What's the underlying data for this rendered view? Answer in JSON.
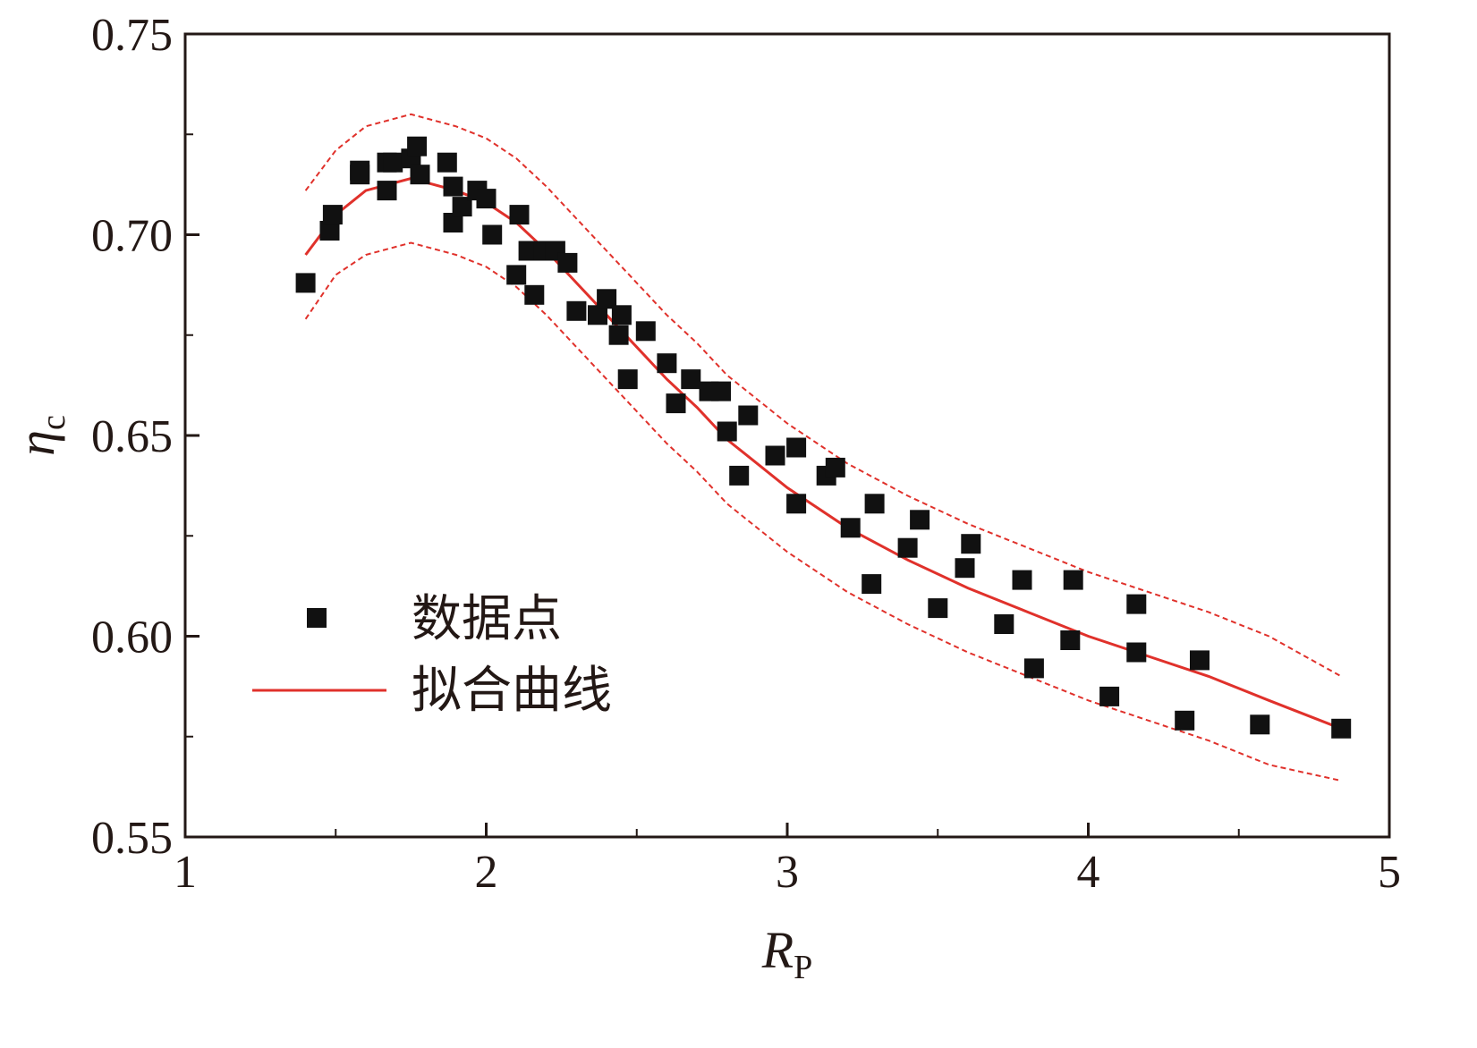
{
  "chart_data": {
    "type": "scatter",
    "xlabel": "R",
    "xlabel_sub": "P",
    "ylabel": "η",
    "ylabel_sub": "c",
    "xlim": [
      1,
      5
    ],
    "ylim": [
      0.55,
      0.75
    ],
    "x_ticks": [
      "1",
      "2",
      "3",
      "4",
      "5"
    ],
    "y_ticks": [
      "0.55",
      "0.60",
      "0.65",
      "0.70",
      "0.75"
    ],
    "grid": false,
    "legend_position": "center-left",
    "legend": {
      "points_label": "数据点",
      "fit_label": "拟合曲线"
    },
    "colors": {
      "points": "#111111",
      "fit": "#e0312b",
      "bounds": "#e0312b",
      "axis": "#231815"
    },
    "series": [
      {
        "name": "数据点",
        "kind": "points",
        "points": [
          [
            1.4,
            0.688
          ],
          [
            1.48,
            0.701
          ],
          [
            1.49,
            0.705
          ],
          [
            1.58,
            0.715
          ],
          [
            1.58,
            0.716
          ],
          [
            1.67,
            0.718
          ],
          [
            1.67,
            0.711
          ],
          [
            1.69,
            0.718
          ],
          [
            1.75,
            0.719
          ],
          [
            1.77,
            0.722
          ],
          [
            1.78,
            0.715
          ],
          [
            1.87,
            0.718
          ],
          [
            1.89,
            0.712
          ],
          [
            1.89,
            0.703
          ],
          [
            1.92,
            0.707
          ],
          [
            1.97,
            0.711
          ],
          [
            2.0,
            0.709
          ],
          [
            2.02,
            0.7
          ],
          [
            2.1,
            0.69
          ],
          [
            2.11,
            0.705
          ],
          [
            2.14,
            0.696
          ],
          [
            2.16,
            0.685
          ],
          [
            2.19,
            0.696
          ],
          [
            2.23,
            0.696
          ],
          [
            2.27,
            0.693
          ],
          [
            2.3,
            0.681
          ],
          [
            2.37,
            0.68
          ],
          [
            2.4,
            0.684
          ],
          [
            2.44,
            0.675
          ],
          [
            2.45,
            0.68
          ],
          [
            2.47,
            0.664
          ],
          [
            2.53,
            0.676
          ],
          [
            2.6,
            0.668
          ],
          [
            2.63,
            0.658
          ],
          [
            2.68,
            0.664
          ],
          [
            2.74,
            0.661
          ],
          [
            2.78,
            0.661
          ],
          [
            2.8,
            0.651
          ],
          [
            2.84,
            0.64
          ],
          [
            2.87,
            0.655
          ],
          [
            2.96,
            0.645
          ],
          [
            3.03,
            0.647
          ],
          [
            3.03,
            0.633
          ],
          [
            3.13,
            0.64
          ],
          [
            3.16,
            0.642
          ],
          [
            3.21,
            0.627
          ],
          [
            3.28,
            0.613
          ],
          [
            3.29,
            0.633
          ],
          [
            3.4,
            0.622
          ],
          [
            3.44,
            0.629
          ],
          [
            3.5,
            0.607
          ],
          [
            3.59,
            0.617
          ],
          [
            3.61,
            0.623
          ],
          [
            3.72,
            0.603
          ],
          [
            3.78,
            0.614
          ],
          [
            3.82,
            0.592
          ],
          [
            3.94,
            0.599
          ],
          [
            3.95,
            0.614
          ],
          [
            4.07,
            0.585
          ],
          [
            4.16,
            0.608
          ],
          [
            4.16,
            0.596
          ],
          [
            4.32,
            0.579
          ],
          [
            4.37,
            0.594
          ],
          [
            4.57,
            0.578
          ],
          [
            4.84,
            0.577
          ]
        ]
      },
      {
        "name": "拟合曲线",
        "kind": "line",
        "x": [
          1.4,
          1.5,
          1.6,
          1.7,
          1.75,
          1.8,
          1.9,
          2.0,
          2.1,
          2.2,
          2.3,
          2.4,
          2.5,
          2.6,
          2.7,
          2.8,
          2.9,
          3.0,
          3.2,
          3.4,
          3.6,
          3.8,
          4.0,
          4.2,
          4.4,
          4.6,
          4.84
        ],
        "y": [
          0.695,
          0.705,
          0.711,
          0.713,
          0.714,
          0.713,
          0.711,
          0.708,
          0.703,
          0.696,
          0.688,
          0.68,
          0.672,
          0.664,
          0.657,
          0.649,
          0.643,
          0.637,
          0.627,
          0.619,
          0.612,
          0.606,
          0.6,
          0.595,
          0.59,
          0.584,
          0.577
        ]
      },
      {
        "kind": "upper-bound",
        "x": [
          1.4,
          1.5,
          1.6,
          1.7,
          1.75,
          1.8,
          1.9,
          2.0,
          2.1,
          2.2,
          2.3,
          2.4,
          2.5,
          2.6,
          2.7,
          2.8,
          2.9,
          3.0,
          3.2,
          3.4,
          3.6,
          3.8,
          4.0,
          4.2,
          4.4,
          4.6,
          4.84
        ],
        "y": [
          0.711,
          0.721,
          0.727,
          0.729,
          0.73,
          0.729,
          0.727,
          0.724,
          0.719,
          0.712,
          0.704,
          0.696,
          0.688,
          0.68,
          0.673,
          0.665,
          0.659,
          0.653,
          0.643,
          0.635,
          0.628,
          0.622,
          0.616,
          0.611,
          0.606,
          0.6,
          0.59
        ]
      },
      {
        "kind": "lower-bound",
        "x": [
          1.4,
          1.5,
          1.6,
          1.7,
          1.75,
          1.8,
          1.9,
          2.0,
          2.1,
          2.2,
          2.3,
          2.4,
          2.5,
          2.6,
          2.7,
          2.8,
          2.9,
          3.0,
          3.2,
          3.4,
          3.6,
          3.8,
          4.0,
          4.2,
          4.4,
          4.6,
          4.84
        ],
        "y": [
          0.679,
          0.69,
          0.695,
          0.697,
          0.698,
          0.697,
          0.695,
          0.692,
          0.687,
          0.68,
          0.672,
          0.664,
          0.656,
          0.648,
          0.641,
          0.633,
          0.627,
          0.621,
          0.611,
          0.603,
          0.596,
          0.59,
          0.584,
          0.579,
          0.574,
          0.568,
          0.564
        ]
      }
    ]
  }
}
